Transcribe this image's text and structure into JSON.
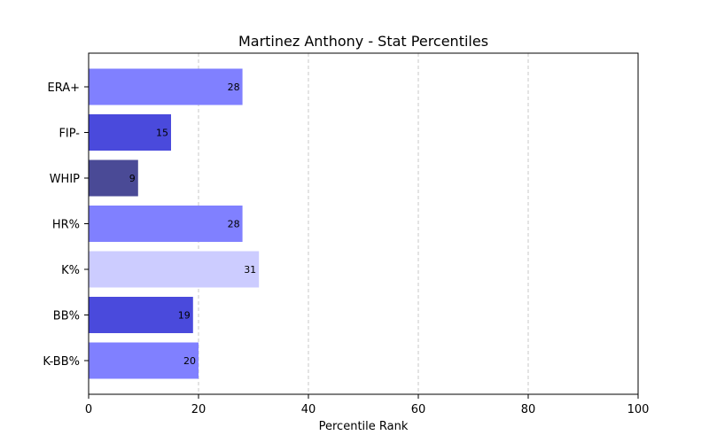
{
  "chart_data": {
    "type": "bar",
    "orientation": "horizontal",
    "title": "Martinez Anthony - Stat Percentiles",
    "xlabel": "Percentile Rank",
    "ylabel": "",
    "categories": [
      "ERA+",
      "FIP-",
      "WHIP",
      "HR%",
      "K%",
      "BB%",
      "K-BB%"
    ],
    "values": [
      28,
      15,
      9,
      28,
      31,
      19,
      20
    ],
    "bar_colors": [
      "#8080ff",
      "#4a4adc",
      "#4a4a96",
      "#8080ff",
      "#ccccff",
      "#4a4adc",
      "#8080ff"
    ],
    "xlim": [
      0,
      100
    ],
    "xticks": [
      "0",
      "20",
      "40",
      "60",
      "80",
      "100"
    ],
    "grid": "vertical dashed",
    "legend": "none"
  }
}
